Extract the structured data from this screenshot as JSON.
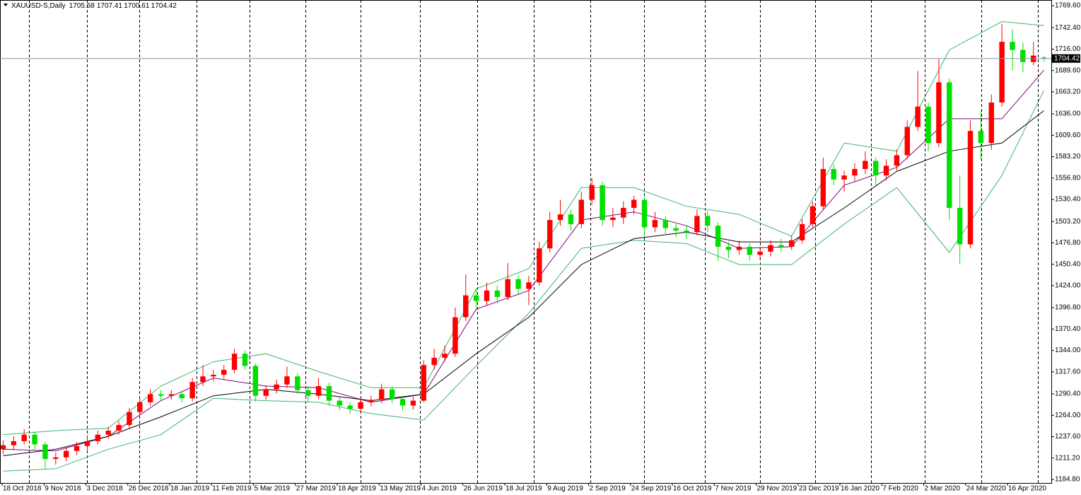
{
  "chart_data": {
    "type": "candlestick",
    "title": "XAUUSD-S,Daily",
    "up_color": "#ff0000",
    "down_color": "#00e000",
    "price_line_color": "#8899aa",
    "open": [
      1222,
      1227,
      1232,
      1240,
      1228,
      1210,
      1212,
      1220,
      1226,
      1232,
      1240,
      1245,
      1252,
      1268,
      1280,
      1290,
      1288,
      1290,
      1285,
      1305,
      1312,
      1314,
      1320,
      1340,
      1325,
      1288,
      1296,
      1302,
      1312,
      1295,
      1288,
      1300,
      1282,
      1276,
      1272,
      1280,
      1283,
      1296,
      1284,
      1276,
      1282,
      1326,
      1335,
      1340,
      1385,
      1412,
      1405,
      1418,
      1410,
      1432,
      1420,
      1428,
      1470,
      1505,
      1512,
      1500,
      1530,
      1548,
      1505,
      1508,
      1520,
      1530,
      1496,
      1505,
      1495,
      1492,
      1490,
      1510,
      1498,
      1472,
      1468,
      1472,
      1462,
      1466,
      1474,
      1472,
      1480,
      1500,
      1522,
      1568,
      1555,
      1560,
      1568,
      1578,
      1560,
      1572,
      1585,
      1620,
      1645,
      1600,
      1675,
      1520,
      1475,
      1615,
      1600,
      1650,
      1725,
      1715,
      1700,
      1705.68
    ],
    "high": [
      1233,
      1238,
      1247,
      1244,
      1231,
      1218,
      1225,
      1231,
      1238,
      1245,
      1250,
      1257,
      1273,
      1285,
      1296,
      1295,
      1295,
      1294,
      1310,
      1326,
      1320,
      1326,
      1346,
      1344,
      1328,
      1301,
      1308,
      1324,
      1316,
      1300,
      1310,
      1304,
      1286,
      1280,
      1285,
      1288,
      1303,
      1300,
      1288,
      1287,
      1332,
      1346,
      1350,
      1397,
      1438,
      1420,
      1428,
      1424,
      1452,
      1436,
      1436,
      1478,
      1515,
      1530,
      1518,
      1540,
      1557,
      1552,
      1520,
      1528,
      1535,
      1534,
      1515,
      1510,
      1500,
      1498,
      1518,
      1516,
      1502,
      1478,
      1480,
      1476,
      1472,
      1480,
      1482,
      1486,
      1506,
      1528,
      1582,
      1574,
      1566,
      1575,
      1590,
      1582,
      1580,
      1592,
      1628,
      1689,
      1650,
      1704,
      1680,
      1560,
      1628,
      1640,
      1660,
      1747,
      1740,
      1724,
      1725,
      1707.41
    ],
    "low": [
      1216,
      1221,
      1228,
      1222,
      1198,
      1203,
      1207,
      1215,
      1221,
      1228,
      1235,
      1240,
      1248,
      1264,
      1276,
      1283,
      1283,
      1280,
      1281,
      1300,
      1306,
      1309,
      1316,
      1320,
      1281,
      1283,
      1291,
      1298,
      1290,
      1281,
      1284,
      1276,
      1270,
      1266,
      1268,
      1275,
      1279,
      1279,
      1270,
      1271,
      1280,
      1320,
      1330,
      1336,
      1380,
      1396,
      1400,
      1402,
      1406,
      1412,
      1400,
      1424,
      1465,
      1498,
      1492,
      1495,
      1524,
      1498,
      1496,
      1500,
      1512,
      1485,
      1490,
      1488,
      1484,
      1482,
      1486,
      1490,
      1455,
      1458,
      1462,
      1455,
      1456,
      1460,
      1466,
      1468,
      1476,
      1496,
      1518,
      1548,
      1540,
      1552,
      1562,
      1548,
      1554,
      1566,
      1580,
      1615,
      1590,
      1595,
      1505,
      1451,
      1470,
      1580,
      1592,
      1645,
      1690,
      1688,
      1696,
      1700.61
    ],
    "close": [
      1227,
      1232,
      1240,
      1228,
      1210,
      1212,
      1220,
      1226,
      1232,
      1240,
      1245,
      1252,
      1268,
      1280,
      1290,
      1288,
      1290,
      1285,
      1305,
      1312,
      1314,
      1320,
      1340,
      1325,
      1288,
      1296,
      1302,
      1312,
      1295,
      1288,
      1300,
      1282,
      1276,
      1272,
      1280,
      1283,
      1296,
      1284,
      1276,
      1282,
      1326,
      1335,
      1340,
      1385,
      1412,
      1405,
      1418,
      1410,
      1432,
      1420,
      1428,
      1470,
      1505,
      1512,
      1500,
      1530,
      1548,
      1505,
      1508,
      1520,
      1530,
      1496,
      1505,
      1495,
      1492,
      1490,
      1510,
      1498,
      1472,
      1468,
      1472,
      1462,
      1466,
      1474,
      1472,
      1480,
      1500,
      1522,
      1568,
      1555,
      1560,
      1568,
      1578,
      1560,
      1572,
      1585,
      1620,
      1645,
      1600,
      1675,
      1520,
      1475,
      1615,
      1600,
      1650,
      1725,
      1715,
      1700,
      1708,
      1704.42
    ],
    "line_x": [
      0,
      5,
      10,
      15,
      20,
      25,
      30,
      35,
      40,
      45,
      50,
      55,
      60,
      65,
      70,
      75,
      80,
      85,
      90,
      95,
      99
    ],
    "lines": [
      {
        "color": "#3cb371",
        "values": [
          1240,
          1245,
          1248,
          1300,
          1330,
          1340,
          1318,
          1298,
          1298,
          1420,
          1445,
          1545,
          1545,
          1522,
          1512,
          1485,
          1600,
          1590,
          1715,
          1750,
          1745
        ]
      },
      {
        "color": "#3cb371",
        "values": [
          1195,
          1198,
          1222,
          1240,
          1285,
          1282,
          1280,
          1266,
          1258,
          1325,
          1390,
          1470,
          1480,
          1476,
          1450,
          1450,
          1500,
          1545,
          1465,
          1560,
          1665
        ]
      },
      {
        "color": "#800080",
        "values": [
          1222,
          1220,
          1238,
          1282,
          1310,
          1300,
          1298,
          1280,
          1290,
          1395,
          1418,
          1505,
          1515,
          1498,
          1470,
          1472,
          1548,
          1570,
          1630,
          1630,
          1690
        ]
      },
      {
        "color": "#000000",
        "values": [
          1214,
          1222,
          1238,
          1262,
          1288,
          1296,
          1290,
          1282,
          1290,
          1340,
          1385,
          1450,
          1482,
          1490,
          1478,
          1478,
          1520,
          1565,
          1590,
          1600,
          1640
        ]
      }
    ],
    "xlim": [
      -0.3,
      99.7
    ],
    "ylim": [
      1180.4,
      1776.6
    ],
    "yticks": [
      {
        "value": 1184.8,
        "label": "1184.80"
      },
      {
        "value": 1211.2,
        "label": "1211.20"
      },
      {
        "value": 1237.6,
        "label": "1237.60"
      },
      {
        "value": 1264,
        "label": "1264.00"
      },
      {
        "value": 1290.4,
        "label": "1290.40"
      },
      {
        "value": 1317.6,
        "label": "1317.60"
      },
      {
        "value": 1344,
        "label": "1344.00"
      },
      {
        "value": 1370.4,
        "label": "1370.40"
      },
      {
        "value": 1396.8,
        "label": "1396.80"
      },
      {
        "value": 1424,
        "label": "1424.00"
      },
      {
        "value": 1450.4,
        "label": "1450.40"
      },
      {
        "value": 1476.8,
        "label": "1476.80"
      },
      {
        "value": 1503.2,
        "label": "1503.20"
      },
      {
        "value": 1530.4,
        "label": "1530.40"
      },
      {
        "value": 1556.8,
        "label": "1556.80"
      },
      {
        "value": 1583.2,
        "label": "1583.20"
      },
      {
        "value": 1609.6,
        "label": "1609.60"
      },
      {
        "value": 1636,
        "label": "1636.00"
      },
      {
        "value": 1663.2,
        "label": "1663.20"
      },
      {
        "value": 1689.6,
        "label": "1689.60"
      },
      {
        "value": 1716,
        "label": "1716.00"
      },
      {
        "value": 1742.4,
        "label": "1742.40"
      },
      {
        "value": 1769.6,
        "label": "1769.60"
      }
    ],
    "x_tick_labels": [
      "18 Oct 2018",
      "9 Nov 2018",
      "3 Dec 2018",
      "26 Dec 2018",
      "18 Jan 2019",
      "11 Feb 2019",
      "5 Mar 2019",
      "27 Mar 2019",
      "18 Apr 2019",
      "13 May 2019",
      "4 Jun 2019",
      "26 Jun 2019",
      "18 Jul 2019",
      "9 Aug 2019",
      "2 Sep 2019",
      "24 Sep 2019",
      "16 Oct 2019",
      "7 Nov 2019",
      "29 Nov 2019",
      "23 Dec 2019",
      "16 Jan 2020",
      "7 Feb 2020",
      "2 Mar 2020",
      "24 Mar 2020",
      "16 Apr 2020"
    ]
  }
}
